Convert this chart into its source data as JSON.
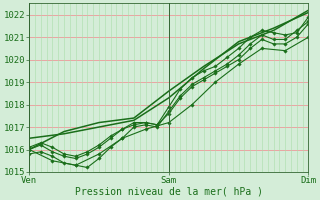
{
  "bg_color": "#d4edd8",
  "plot_bg_color": "#d4edd8",
  "grid_color_major_h": "#ee9999",
  "grid_color_minor_v": "#aaddaa",
  "line_color": "#1a6e1a",
  "ylim": [
    1015.0,
    1022.5
  ],
  "xlim": [
    0,
    96
  ],
  "yticks": [
    1015,
    1016,
    1017,
    1018,
    1019,
    1020,
    1021,
    1022
  ],
  "xtick_labels": [
    "Ven",
    "Sam",
    "Dim"
  ],
  "xtick_positions": [
    0,
    48,
    96
  ],
  "xlabel": "Pression niveau de la mer( hPa )",
  "line1_x": [
    0,
    4,
    8,
    12,
    16,
    20,
    24,
    28,
    32,
    36,
    40,
    44,
    48,
    52,
    56,
    60,
    64,
    68,
    72,
    76,
    80,
    84,
    88,
    92,
    96
  ],
  "line1_y": [
    1015.8,
    1015.9,
    1015.7,
    1015.4,
    1015.3,
    1015.2,
    1015.6,
    1016.1,
    1016.5,
    1017.0,
    1017.1,
    1017.0,
    1017.7,
    1018.4,
    1018.9,
    1019.2,
    1019.5,
    1019.8,
    1020.2,
    1020.7,
    1021.1,
    1020.9,
    1020.9,
    1021.3,
    1021.7
  ],
  "line2_x": [
    0,
    4,
    8,
    12,
    16,
    20,
    24,
    28,
    32,
    36,
    40,
    44,
    48,
    52,
    56,
    60,
    64,
    68,
    72,
    76,
    80,
    84,
    88,
    92,
    96
  ],
  "line2_y": [
    1016.1,
    1016.3,
    1016.1,
    1015.8,
    1015.7,
    1015.9,
    1016.2,
    1016.6,
    1016.9,
    1017.2,
    1017.2,
    1017.1,
    1017.9,
    1018.7,
    1019.2,
    1019.5,
    1019.7,
    1020.1,
    1020.5,
    1021.0,
    1021.3,
    1021.2,
    1021.1,
    1021.2,
    1021.9
  ],
  "line3_x": [
    0,
    12,
    24,
    36,
    48,
    60,
    72,
    84,
    96
  ],
  "line3_y": [
    1016.0,
    1016.8,
    1017.2,
    1017.4,
    1018.6,
    1019.7,
    1020.7,
    1021.3,
    1022.2
  ],
  "line4_x": [
    0,
    12,
    24,
    36,
    48,
    60,
    72,
    84,
    96
  ],
  "line4_y": [
    1016.5,
    1016.7,
    1017.0,
    1017.3,
    1018.3,
    1019.6,
    1020.8,
    1021.4,
    1022.1
  ],
  "line5_x": [
    0,
    8,
    16,
    24,
    32,
    40,
    48,
    56,
    64,
    72,
    80,
    88,
    96
  ],
  "line5_y": [
    1016.0,
    1015.5,
    1015.3,
    1015.8,
    1016.5,
    1016.9,
    1017.2,
    1018.0,
    1019.0,
    1019.8,
    1020.5,
    1020.4,
    1021.0
  ],
  "line6_x": [
    0,
    4,
    8,
    12,
    16,
    20,
    24,
    28,
    32,
    36,
    40,
    44,
    48,
    52,
    56,
    60,
    64,
    68,
    72,
    76,
    80,
    84,
    88,
    92,
    96
  ],
  "line6_y": [
    1016.0,
    1016.2,
    1015.9,
    1015.7,
    1015.6,
    1015.8,
    1016.1,
    1016.5,
    1016.9,
    1017.1,
    1017.2,
    1017.1,
    1017.6,
    1018.3,
    1018.8,
    1019.1,
    1019.4,
    1019.7,
    1020.0,
    1020.5,
    1020.9,
    1020.7,
    1020.7,
    1021.0,
    1021.6
  ],
  "vline_positions": [
    0,
    48,
    96
  ]
}
